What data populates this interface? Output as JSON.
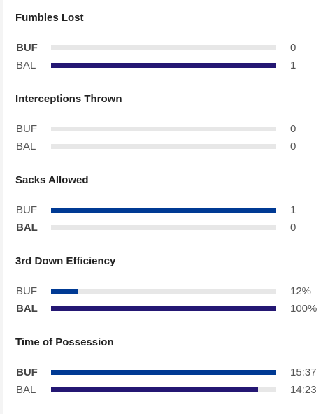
{
  "colors": {
    "buf_bar": "#003a94",
    "bal_bar": "#241773",
    "track": "#e7e7e7"
  },
  "stats": [
    {
      "title": "Fumbles Lost",
      "rows": [
        {
          "team": "BUF",
          "value": "0",
          "fill": 0.0,
          "bold": true
        },
        {
          "team": "BAL",
          "value": "1",
          "fill": 1.0,
          "bold": false
        }
      ]
    },
    {
      "title": "Interceptions Thrown",
      "rows": [
        {
          "team": "BUF",
          "value": "0",
          "fill": 0.0,
          "bold": false
        },
        {
          "team": "BAL",
          "value": "0",
          "fill": 0.0,
          "bold": false
        }
      ]
    },
    {
      "title": "Sacks Allowed",
      "rows": [
        {
          "team": "BUF",
          "value": "1",
          "fill": 1.0,
          "bold": false
        },
        {
          "team": "BAL",
          "value": "0",
          "fill": 0.0,
          "bold": true
        }
      ]
    },
    {
      "title": "3rd Down Efficiency",
      "rows": [
        {
          "team": "BUF",
          "value": "12%",
          "fill": 0.12,
          "bold": false
        },
        {
          "team": "BAL",
          "value": "100%",
          "fill": 1.0,
          "bold": true
        }
      ]
    },
    {
      "title": "Time of Possession",
      "rows": [
        {
          "team": "BUF",
          "value": "15:37",
          "fill": 1.0,
          "bold": true
        },
        {
          "team": "BAL",
          "value": "14:23",
          "fill": 0.92,
          "bold": false
        }
      ]
    }
  ]
}
